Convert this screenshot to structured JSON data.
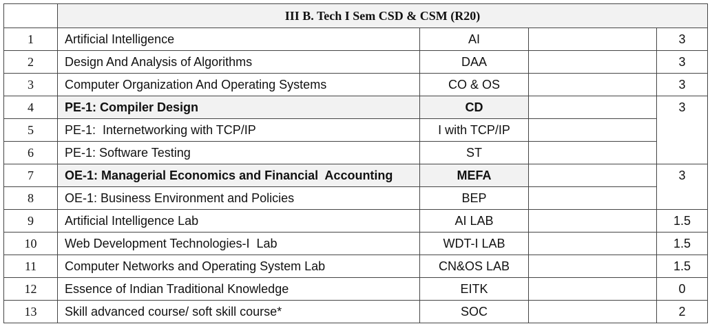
{
  "title": "III B. Tech I Sem CSD & CSM (R20)",
  "rows": [
    {
      "sno": "1",
      "name": "Artificial Intelligence",
      "code": "AI",
      "credits": "3"
    },
    {
      "sno": "2",
      "name": "Design And Analysis of Algorithms",
      "code": "DAA",
      "credits": "3"
    },
    {
      "sno": "3",
      "name": "Computer Organization And Operating Systems",
      "code": "CO & OS",
      "credits": "3"
    },
    {
      "sno": "4",
      "name": "PE-1: Compiler Design",
      "code": "CD",
      "credits": "3"
    },
    {
      "sno": "5",
      "name": "PE-1:  Internetworking with TCP/IP",
      "code": "I with TCP/IP"
    },
    {
      "sno": "6",
      "name": "PE-1: Software Testing",
      "code": "ST"
    },
    {
      "sno": "7",
      "name": "OE-1: Managerial Economics and Financial  Accounting",
      "code": "MEFA",
      "credits": "3"
    },
    {
      "sno": "8",
      "name": "OE-1: Business Environment and Policies",
      "code": "BEP"
    },
    {
      "sno": "9",
      "name": "Artificial Intelligence Lab",
      "code": "AI LAB",
      "credits": "1.5"
    },
    {
      "sno": "10",
      "name": "Web Development Technologies-I  Lab",
      "code": "WDT-I LAB",
      "credits": "1.5"
    },
    {
      "sno": "11",
      "name": "Computer Networks and Operating System Lab",
      "code": "CN&OS LAB",
      "credits": "1.5"
    },
    {
      "sno": "12",
      "name": "Essence of Indian Traditional Knowledge",
      "code": "EITK",
      "credits": "0"
    },
    {
      "sno": "13",
      "name": "Skill advanced course/ soft skill course*",
      "code": "SOC",
      "credits": "2"
    }
  ]
}
